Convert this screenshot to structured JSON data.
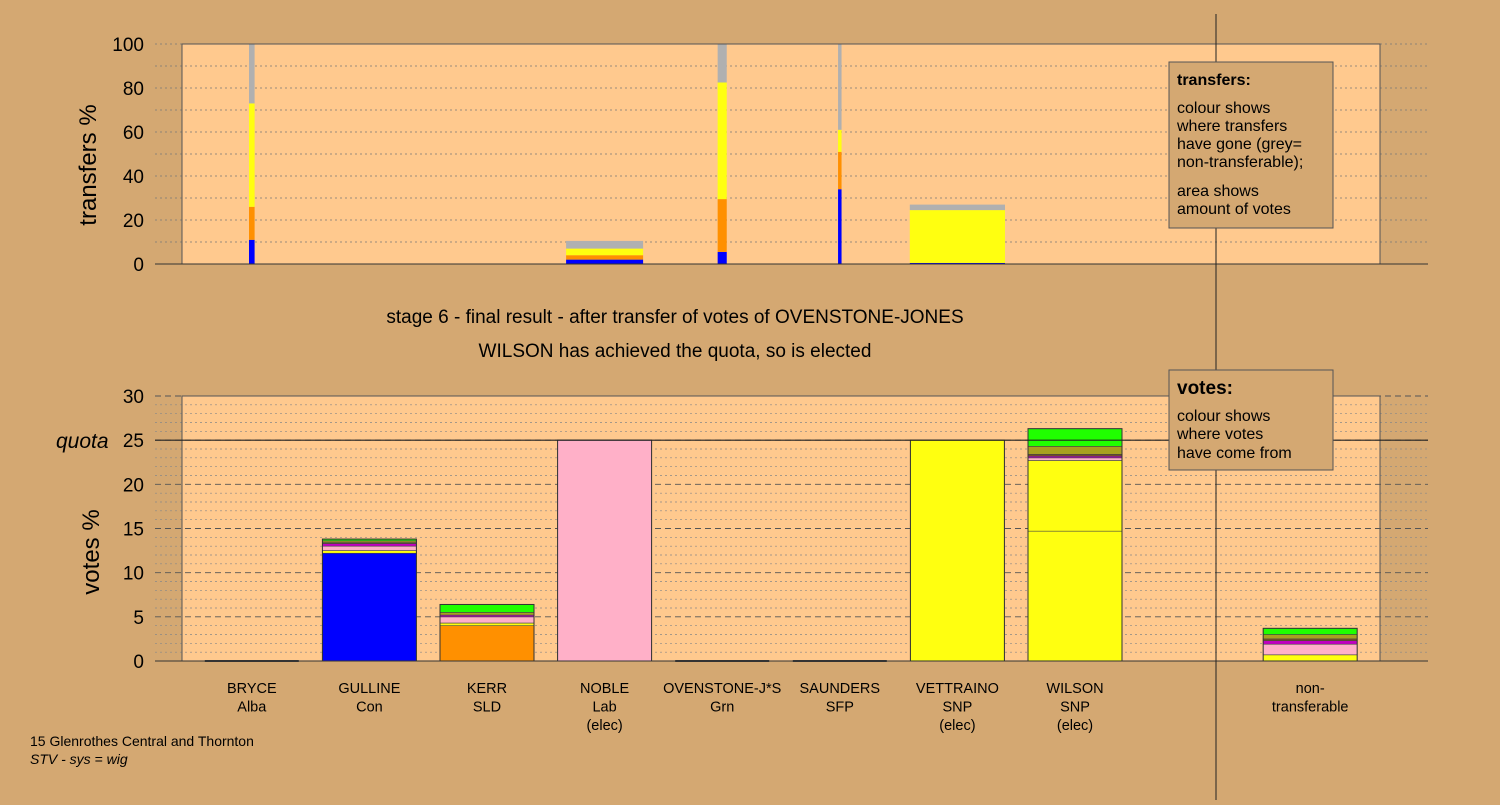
{
  "colors": {
    "background": "#d4a872",
    "plot_bg": "#ffc98e",
    "blue": "#0000ff",
    "orange": "#ff9000",
    "yellow": "#ffff10",
    "pink": "#ffb0c8",
    "green": "#20ff00",
    "olive": "#a8a020",
    "purple": "#c000c0",
    "brown": "#805020",
    "grey": "#b0b0b0"
  },
  "stage_title": "stage 6 - final result - after transfer of votes of OVENSTONE-JONES",
  "stage_subtitle": "WILSON has achieved the quota, so is elected",
  "footer": {
    "line1": "15 Glenrothes Central and Thornton",
    "line2": "STV - sys = wig"
  },
  "legend_transfers": {
    "title": "transfers:",
    "lines": [
      "colour shows",
      "where transfers",
      "have gone (grey=",
      "non-transferable);",
      "area shows",
      "amount of votes"
    ]
  },
  "legend_votes": {
    "title": "votes:",
    "lines": [
      "colour shows",
      "where votes",
      "have come from"
    ]
  },
  "candidates": [
    {
      "name": "BRYCE",
      "party": "Alba",
      "status": ""
    },
    {
      "name": "GULLINE",
      "party": "Con",
      "status": ""
    },
    {
      "name": "KERR",
      "party": "SLD",
      "status": ""
    },
    {
      "name": "NOBLE",
      "party": "Lab",
      "status": "(elec)"
    },
    {
      "name": "OVENSTONE-J*S",
      "party": "Grn",
      "status": ""
    },
    {
      "name": "SAUNDERS",
      "party": "SFP",
      "status": ""
    },
    {
      "name": "VETTRAINO",
      "party": "SNP",
      "status": "(elec)"
    },
    {
      "name": "WILSON",
      "party": "SNP",
      "status": "(elec)"
    },
    {
      "name": "",
      "party": "",
      "status": ""
    },
    {
      "name": "non-",
      "party": "transferable",
      "status": ""
    }
  ],
  "chart_data": [
    {
      "type": "bar",
      "stacked": true,
      "ylabel": "transfers %",
      "ylim": [
        0,
        100
      ],
      "yticks": [
        0,
        20,
        40,
        60,
        80,
        100
      ],
      "bars": [
        {
          "column": 0,
          "width_fraction": 0.08,
          "segments": [
            {
              "color": "blue",
              "value": 11
            },
            {
              "color": "orange",
              "value": 15
            },
            {
              "color": "yellow",
              "value": 47
            },
            {
              "color": "grey",
              "value": 27
            }
          ]
        },
        {
          "column": 3,
          "width_fraction": 1.1,
          "segments": [
            {
              "color": "blue",
              "value": 2
            },
            {
              "color": "orange",
              "value": 2
            },
            {
              "color": "yellow",
              "value": 3
            },
            {
              "color": "grey",
              "value": 3.5
            }
          ]
        },
        {
          "column": 4,
          "width_fraction": 0.13,
          "segments": [
            {
              "color": "blue",
              "value": 5.5
            },
            {
              "color": "orange",
              "value": 24
            },
            {
              "color": "yellow",
              "value": 53
            },
            {
              "color": "grey",
              "value": 17.5
            }
          ]
        },
        {
          "column": 5,
          "width_fraction": 0.05,
          "segments": [
            {
              "color": "blue",
              "value": 34
            },
            {
              "color": "orange",
              "value": 17
            },
            {
              "color": "yellow",
              "value": 10
            },
            {
              "color": "grey",
              "value": 39
            }
          ]
        },
        {
          "column": 6,
          "width_fraction": 1.36,
          "segments": [
            {
              "color": "blue",
              "value": 0.5
            },
            {
              "color": "yellow",
              "value": 24
            },
            {
              "color": "grey",
              "value": 2.5
            }
          ]
        }
      ]
    },
    {
      "type": "bar",
      "stacked": true,
      "ylabel": "votes %",
      "ylim": [
        0,
        30
      ],
      "yticks": [
        0,
        5,
        10,
        15,
        20,
        25,
        30
      ],
      "quota": 25,
      "quota_label": "quota",
      "bars": [
        {
          "column": 0,
          "segments": []
        },
        {
          "column": 1,
          "segments": [
            {
              "color": "blue",
              "value": 12.2
            },
            {
              "color": "yellow",
              "value": 0.3
            },
            {
              "color": "pink",
              "value": 0.5
            },
            {
              "color": "purple",
              "value": 0.3
            },
            {
              "color": "brown",
              "value": 0.1
            },
            {
              "color": "olive",
              "value": 0.2
            },
            {
              "color": "green",
              "value": 0.2
            }
          ]
        },
        {
          "column": 2,
          "segments": [
            {
              "color": "orange",
              "value": 4.0
            },
            {
              "color": "yellow",
              "value": 0.3
            },
            {
              "color": "pink",
              "value": 0.7
            },
            {
              "color": "purple",
              "value": 0.2
            },
            {
              "color": "olive",
              "value": 0.3
            },
            {
              "color": "green",
              "value": 0.9
            }
          ]
        },
        {
          "column": 3,
          "segments": [
            {
              "color": "pink",
              "value": 25.0
            }
          ]
        },
        {
          "column": 4,
          "segments": []
        },
        {
          "column": 5,
          "segments": []
        },
        {
          "column": 6,
          "segments": [
            {
              "color": "yellow",
              "value": 25.0
            }
          ]
        },
        {
          "column": 7,
          "segments": [
            {
              "color": "yellow",
              "value": 14.7
            },
            {
              "color": "yellow",
              "value": 8.0
            },
            {
              "color": "pink",
              "value": 0.3
            },
            {
              "color": "purple",
              "value": 0.2
            },
            {
              "color": "brown",
              "value": 0.2
            },
            {
              "color": "olive",
              "value": 0.9
            },
            {
              "color": "green",
              "value": 2.0
            }
          ]
        },
        {
          "column": 9,
          "segments": [
            {
              "color": "yellow",
              "value": 0.7
            },
            {
              "color": "pink",
              "value": 1.2
            },
            {
              "color": "purple",
              "value": 0.4
            },
            {
              "color": "brown",
              "value": 0.2
            },
            {
              "color": "olive",
              "value": 0.5
            },
            {
              "color": "green",
              "value": 0.7
            }
          ]
        }
      ]
    }
  ]
}
